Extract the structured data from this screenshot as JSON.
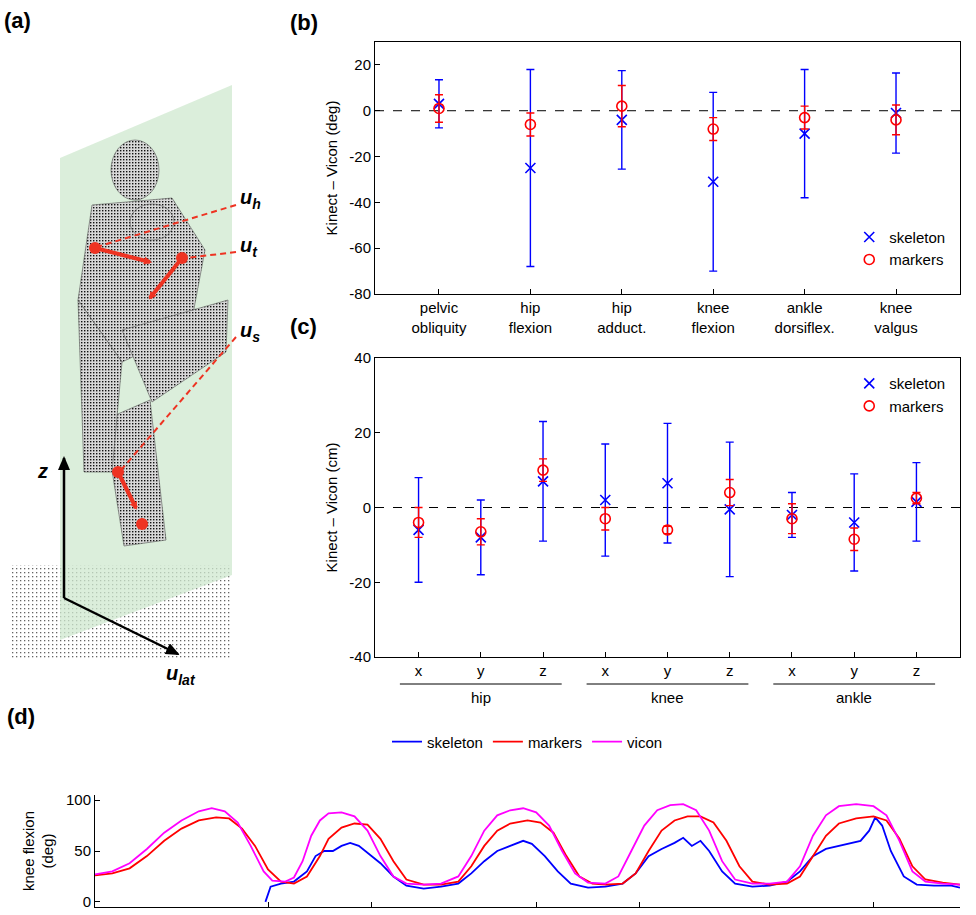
{
  "diagram": {
    "panel_label": "(a)",
    "labels": [
      {
        "text": "u",
        "subscript": "h"
      },
      {
        "text": "u",
        "subscript": "t"
      },
      {
        "text": "u",
        "subscript": "s"
      },
      {
        "text": "z"
      },
      {
        "text": "u",
        "subscript": "lat"
      }
    ]
  },
  "chart_data": [
    {
      "panel_label": "(b)",
      "type": "scatter",
      "y_label": "Kinect – Vicon (deg)",
      "categories": [
        "pelvic obliquity",
        "hip flexion",
        "hip adduct.",
        "knee flexion",
        "ankle dorsiflex.",
        "knee valgus"
      ],
      "ylim": [
        -80,
        30
      ],
      "yticks": [
        -80,
        -60,
        -40,
        -20,
        0,
        20
      ],
      "hline": 0,
      "grid": false,
      "legend": "lower right",
      "series": [
        {
          "name": "skeleton",
          "color": "#0000ff",
          "marker": "x",
          "values": [
            3,
            -25,
            -4,
            -31,
            -10,
            -1
          ],
          "errors": [
            10.5,
            43,
            21.5,
            39,
            28,
            17.5
          ]
        },
        {
          "name": "markers",
          "color": "#ff0000",
          "marker": "circle-open",
          "values": [
            1,
            -6,
            2,
            -8,
            -3,
            -4
          ],
          "errors": [
            6,
            5,
            9,
            5,
            5,
            6.5
          ]
        }
      ]
    },
    {
      "panel_label": "(c)",
      "type": "scatter",
      "y_label": "Kinect – Vicon (cm)",
      "categories": [
        "x",
        "y",
        "z",
        "x",
        "y",
        "z",
        "x",
        "y",
        "z"
      ],
      "groups": [
        "hip",
        "knee",
        "ankle"
      ],
      "ylim": [
        -40,
        40
      ],
      "yticks": [
        -40,
        -20,
        0,
        20,
        40
      ],
      "hline": 0,
      "grid": false,
      "legend": "upper right",
      "series": [
        {
          "name": "skeleton",
          "color": "#0000ff",
          "marker": "x",
          "values": [
            -6,
            -8,
            7,
            2,
            6.5,
            -0.5,
            -2,
            -4,
            1.5
          ],
          "errors": [
            14,
            10,
            16,
            15,
            16,
            18,
            6,
            13,
            10.5
          ]
        },
        {
          "name": "markers",
          "color": "#ff0000",
          "marker": "circle-open",
          "values": [
            -4,
            -6.5,
            10,
            -3,
            -6,
            4,
            -3,
            -8.5,
            2.5
          ],
          "errors": [
            4,
            3.5,
            3,
            3,
            1,
            3.5,
            4,
            3,
            1.5
          ]
        }
      ]
    },
    {
      "panel_label": "(d)",
      "type": "line",
      "y_label": "knee flexion (deg)",
      "xlim": [
        0,
        100
      ],
      "xticks": [
        20,
        32,
        51,
        63,
        78,
        90
      ],
      "ylim": [
        -5,
        105
      ],
      "yticks": [
        0,
        50,
        100
      ],
      "tick_labels": "y",
      "grid": false,
      "legend": "top",
      "series": [
        {
          "name": "skeleton",
          "color": "#0000ff",
          "x": [
            19.7,
            20.3,
            21.5,
            23,
            24.5,
            25.5,
            26.5,
            27.5,
            28.5,
            29.5,
            30.5,
            31.5,
            33,
            34.5,
            36,
            38,
            40,
            42,
            43.5,
            45,
            46.5,
            48,
            49.5,
            50.5,
            52,
            53.5,
            55,
            57,
            59,
            61,
            62.5,
            64,
            65.5,
            67,
            68,
            69,
            70,
            71,
            72.5,
            74,
            76,
            78,
            80,
            81.5,
            83,
            84.5,
            86,
            87.5,
            88.5,
            89.5,
            90.2,
            91,
            92,
            93.5,
            95,
            97,
            99,
            100
          ],
          "values": [
            0,
            15,
            18,
            20,
            30,
            45,
            50,
            50,
            55,
            58,
            55,
            48,
            38,
            25,
            16,
            13,
            15,
            18,
            28,
            40,
            50,
            55,
            60,
            57,
            45,
            30,
            18,
            14,
            15,
            18,
            28,
            45,
            52,
            58,
            63,
            55,
            60,
            50,
            30,
            18,
            15,
            16,
            20,
            30,
            45,
            52,
            55,
            58,
            60,
            70,
            83,
            75,
            50,
            25,
            17,
            16,
            16,
            14
          ]
        },
        {
          "name": "markers",
          "color": "#ff0000",
          "x": [
            0,
            2,
            4,
            6,
            8,
            10,
            12,
            14,
            15.5,
            17,
            18.5,
            20,
            21.5,
            23,
            24.5,
            26,
            27,
            28.5,
            30,
            31.5,
            33,
            34.5,
            36,
            38,
            40,
            42,
            43.5,
            45,
            46.5,
            48,
            50,
            51.5,
            53,
            54.5,
            56,
            57.5,
            59,
            61,
            62.5,
            64,
            65.5,
            67,
            68.5,
            70,
            71.5,
            73,
            74.5,
            76,
            78,
            80,
            81.5,
            83,
            84.5,
            86,
            88,
            90,
            91.5,
            93,
            94.5,
            96,
            98,
            100
          ],
          "values": [
            26,
            28,
            33,
            45,
            60,
            72,
            80,
            83,
            82,
            72,
            55,
            32,
            20,
            18,
            25,
            45,
            62,
            73,
            77,
            76,
            62,
            40,
            22,
            17,
            17,
            20,
            35,
            55,
            70,
            77,
            80,
            78,
            68,
            45,
            25,
            18,
            17,
            18,
            28,
            50,
            70,
            80,
            84,
            84,
            78,
            60,
            35,
            20,
            17,
            18,
            25,
            45,
            65,
            77,
            82,
            84,
            80,
            62,
            35,
            22,
            19,
            17
          ]
        },
        {
          "name": "vicon",
          "color": "#ff00ff",
          "x": [
            0,
            2,
            4,
            6,
            8,
            10,
            12,
            13.5,
            15,
            16.5,
            18,
            19.5,
            20.5,
            22,
            23,
            24,
            25,
            26,
            27,
            28.5,
            30,
            31.5,
            33,
            34.5,
            36,
            38,
            40,
            42,
            43.5,
            45,
            46.5,
            48,
            49.5,
            51,
            52.5,
            54,
            55.5,
            57,
            59,
            60.5,
            62,
            63.5,
            65,
            66.5,
            68,
            69.5,
            71,
            72.5,
            74,
            76,
            78,
            80,
            81.5,
            83,
            84.5,
            86,
            88,
            90,
            91.5,
            93,
            94.5,
            96,
            98,
            100
          ],
          "values": [
            27,
            30,
            38,
            52,
            68,
            80,
            89,
            92,
            89,
            78,
            55,
            30,
            21,
            20,
            24,
            40,
            65,
            80,
            87,
            88,
            84,
            70,
            45,
            25,
            18,
            17,
            18,
            25,
            45,
            70,
            85,
            90,
            92,
            88,
            75,
            50,
            28,
            19,
            18,
            25,
            50,
            75,
            90,
            95,
            96,
            90,
            70,
            40,
            22,
            18,
            18,
            20,
            35,
            65,
            85,
            94,
            96,
            94,
            85,
            60,
            30,
            20,
            18,
            17
          ]
        }
      ]
    }
  ]
}
